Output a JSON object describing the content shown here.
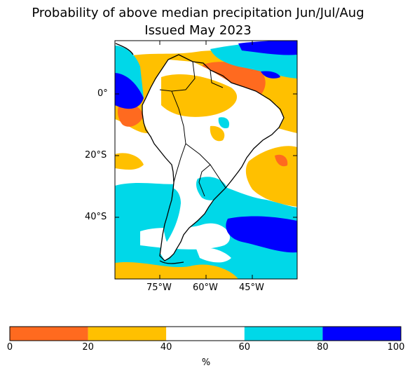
{
  "title": {
    "line1": "Probability of above median precipitation Jun/Jul/Aug",
    "line2": "Issued May 2023"
  },
  "map": {
    "lat_labels": [
      "0°",
      "20°S",
      "40°S"
    ],
    "lon_labels": [
      "75°W",
      "60°W",
      "45°W"
    ]
  },
  "colorbar": {
    "ticks": [
      "0",
      "20",
      "40",
      "60",
      "80",
      "100"
    ],
    "unit": "%",
    "bins": [
      {
        "range": "0-20",
        "color": "#ff6a1f"
      },
      {
        "range": "20-40",
        "color": "#ffc000"
      },
      {
        "range": "40-60",
        "color": "#ffffff"
      },
      {
        "range": "60-80",
        "color": "#00d8e8"
      },
      {
        "range": "80-100",
        "color": "#0000ff"
      }
    ]
  }
}
